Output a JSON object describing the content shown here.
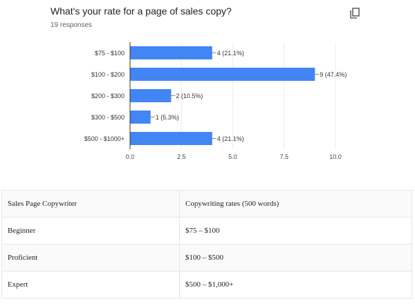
{
  "header": {
    "title": "What's your rate for a page of sales copy?",
    "responses": "19 responses",
    "copy_icon": "copy-icon"
  },
  "chart_data": {
    "type": "bar",
    "orientation": "horizontal",
    "title": "What's your rate for a page of sales copy?",
    "subtitle": "19 responses",
    "categories": [
      "$75 - $100",
      "$100 - $200",
      "$200 - $300",
      "$300 - $500",
      "$500 - $1000+"
    ],
    "values": [
      4,
      9,
      2,
      1,
      4
    ],
    "labels": [
      "4 (21.1%)",
      "9 (47.4%)",
      "2 (10.5%)",
      "1 (5.3%)",
      "4 (21.1%)"
    ],
    "xlim": [
      0,
      10
    ],
    "xticks": [
      "0.0",
      "2.5",
      "5.0",
      "7.5",
      "10.0"
    ],
    "xlabel": "",
    "ylabel": "",
    "grid": true,
    "bar_color": "#4285f4"
  },
  "table": {
    "headers": [
      "Sales Page Copywriter",
      "Copywriting rates (500 words)"
    ],
    "rows": [
      [
        "Beginner",
        "$75 – $100"
      ],
      [
        "Proficient",
        "$100 – $500"
      ],
      [
        "Expert",
        "$500 – $1,000+"
      ]
    ]
  }
}
